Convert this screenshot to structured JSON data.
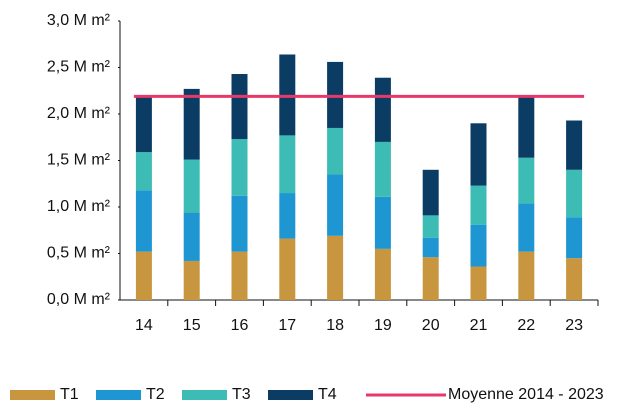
{
  "chart_data": {
    "type": "bar",
    "stacked": true,
    "categories": [
      "14",
      "15",
      "16",
      "17",
      "18",
      "19",
      "20",
      "21",
      "22",
      "23"
    ],
    "series": [
      {
        "name": "T1",
        "color": "#c8963e",
        "values": [
          0.52,
          0.42,
          0.52,
          0.66,
          0.69,
          0.55,
          0.46,
          0.36,
          0.52,
          0.45
        ]
      },
      {
        "name": "T2",
        "color": "#1e96d2",
        "values": [
          0.66,
          0.52,
          0.6,
          0.49,
          0.66,
          0.56,
          0.21,
          0.45,
          0.52,
          0.44
        ]
      },
      {
        "name": "T3",
        "color": "#3cbcb4",
        "values": [
          0.41,
          0.57,
          0.61,
          0.62,
          0.5,
          0.59,
          0.24,
          0.42,
          0.49,
          0.51
        ]
      },
      {
        "name": "T4",
        "color": "#0a3c64",
        "values": [
          0.59,
          0.76,
          0.7,
          0.87,
          0.71,
          0.69,
          0.49,
          0.67,
          0.67,
          0.53
        ]
      },
      {
        "name": "Moyenne 2014 - 2023",
        "color": "#e8386a",
        "kind": "line",
        "values": [
          2.19,
          2.19,
          2.19,
          2.19,
          2.19,
          2.19,
          2.19,
          2.19,
          2.19,
          2.19
        ]
      }
    ],
    "ylim": [
      0,
      3
    ],
    "yticks": [
      {
        "value": 0,
        "label": "0,0 M m²"
      },
      {
        "value": 0.5,
        "label": "0,5 M m²"
      },
      {
        "value": 1,
        "label": "1,0 M m²"
      },
      {
        "value": 1.5,
        "label": "1,5 M m²"
      },
      {
        "value": 2,
        "label": "2,0 M m²"
      },
      {
        "value": 2.5,
        "label": "2,5 M m²"
      },
      {
        "value": 3,
        "label": "3,0 M m²"
      }
    ],
    "legend": "bottom"
  }
}
